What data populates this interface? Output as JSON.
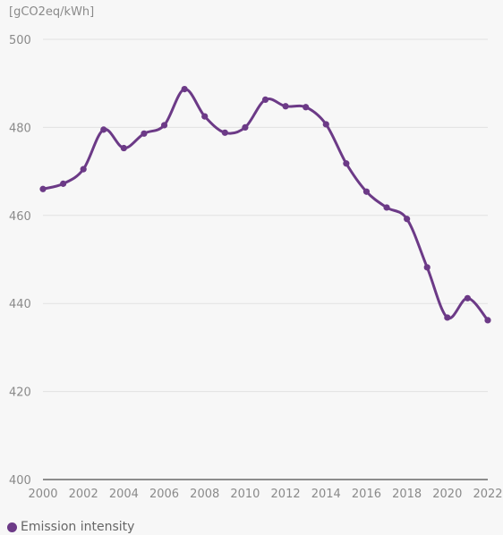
{
  "colors": {
    "series": "#6c3a87",
    "grid": "#e2e2e2",
    "axis": "#6a6a6a",
    "tick_text": "#8a8a8a",
    "background": "#f7f7f7"
  },
  "chart_data": {
    "type": "line",
    "title": "",
    "xlabel": "",
    "ylabel": "[gCO2eq/kWh]",
    "x": [
      2000,
      2001,
      2002,
      2003,
      2004,
      2005,
      2006,
      2007,
      2008,
      2009,
      2010,
      2011,
      2012,
      2013,
      2014,
      2015,
      2016,
      2017,
      2018,
      2019,
      2020,
      2021,
      2022
    ],
    "series": [
      {
        "name": "Emission intensity",
        "values": [
          466,
          467.2,
          470.5,
          479.5,
          475.3,
          478.6,
          480.5,
          488.7,
          482.5,
          478.8,
          480,
          486.3,
          484.8,
          484.6,
          480.7,
          471.8,
          465.4,
          461.8,
          459.2,
          448.2,
          436.8,
          441.2,
          436.2
        ]
      }
    ],
    "xlim": [
      2000,
      2022
    ],
    "ylim": [
      400,
      500
    ],
    "x_ticks": [
      "2000",
      "2002",
      "2004",
      "2006",
      "2008",
      "2010",
      "2012",
      "2014",
      "2016",
      "2018",
      "2020",
      "2022"
    ],
    "y_ticks": [
      "400",
      "420",
      "440",
      "460",
      "480",
      "500"
    ],
    "grid": true,
    "legend_position": "bottom-left"
  }
}
